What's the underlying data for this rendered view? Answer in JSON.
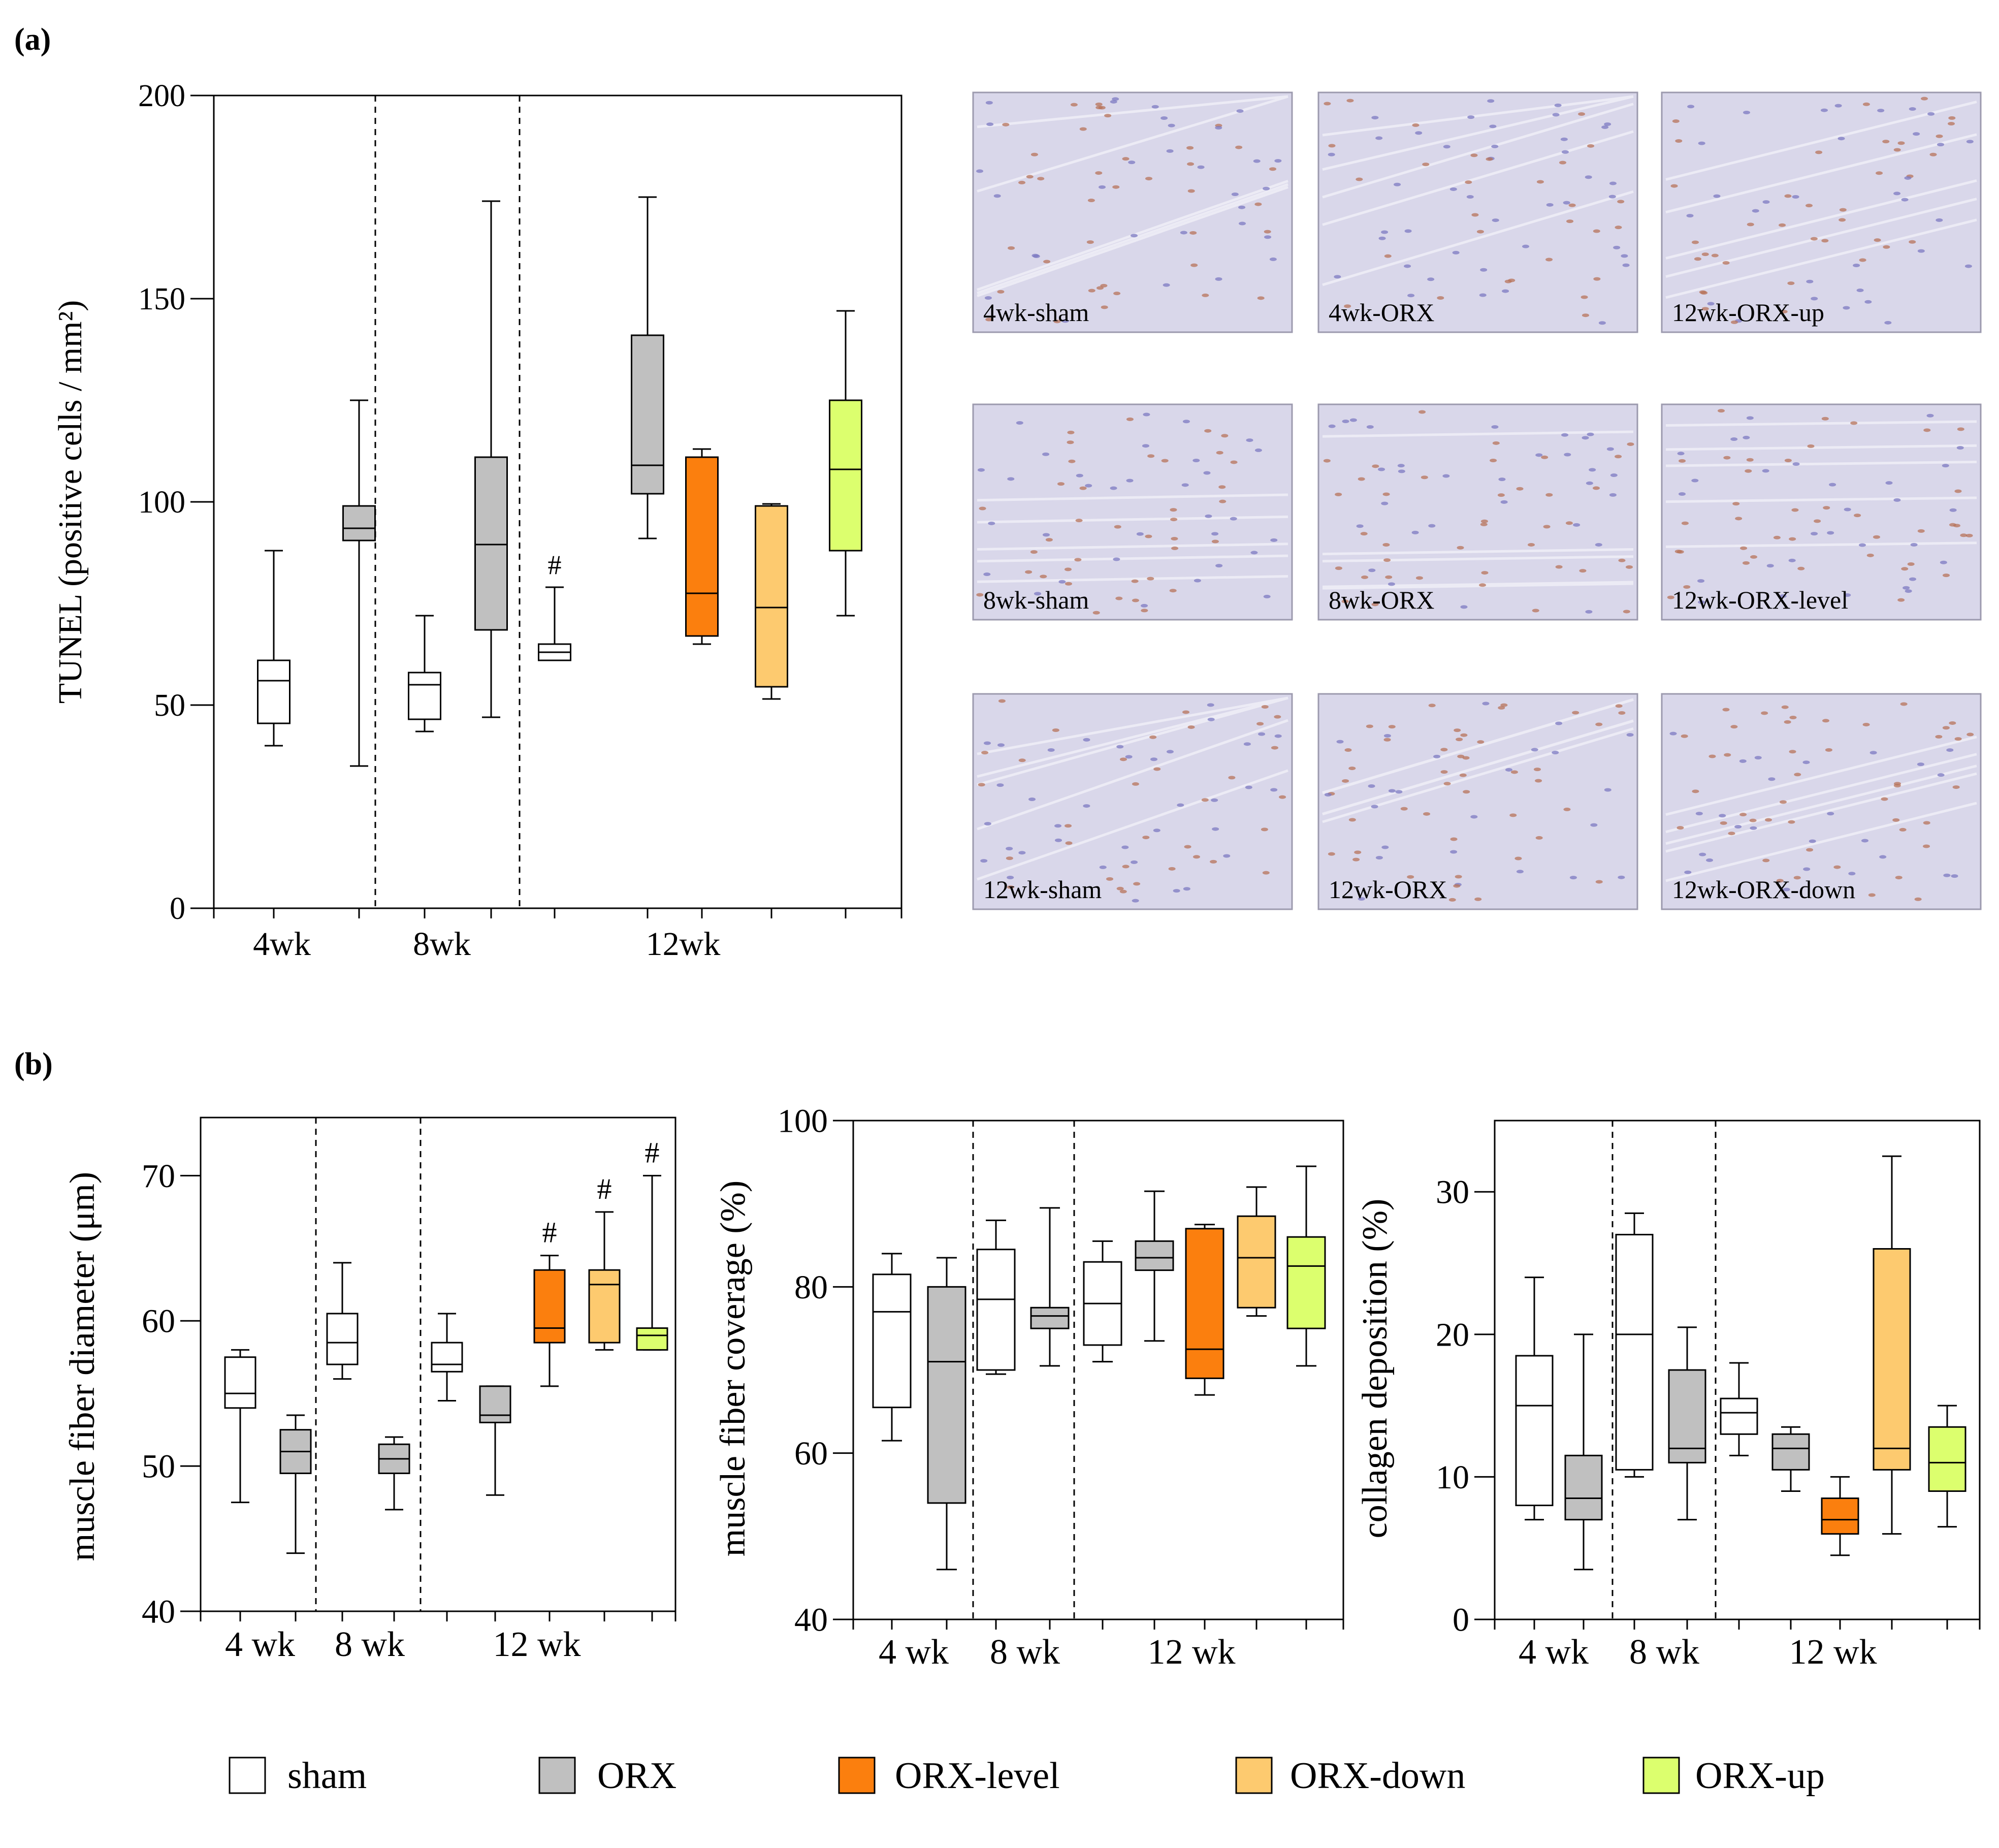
{
  "panels": {
    "a_label": "(a)",
    "b_label": "(b)"
  },
  "colors": {
    "sham": "#ffffff",
    "ORX": "#c0c0c0",
    "ORX-level": "#fb7f0e",
    "ORX-down": "#fdca6f",
    "ORX-up": "#dcff6e",
    "micrograph_bg": "#d9d7ea",
    "nuclei_blue": "#7c79c1",
    "nuclei_brown": "#b7735a"
  },
  "legend": [
    {
      "label": "sham",
      "key": "sham"
    },
    {
      "label": "ORX",
      "key": "ORX"
    },
    {
      "label": "ORX-level",
      "key": "ORX-level"
    },
    {
      "label": "ORX-down",
      "key": "ORX-down"
    },
    {
      "label": "ORX-up",
      "key": "ORX-up"
    }
  ],
  "micrographs": [
    "4wk-sham",
    "4wk-ORX",
    "12wk-ORX-up",
    "8wk-sham",
    "8wk-ORX",
    "12wk-ORX-level",
    "12wk-sham",
    "12wk-ORX",
    "12wk-ORX-down"
  ],
  "chart_data": [
    {
      "id": "tunel",
      "type": "box",
      "ylabel": "TUNEL (positive cells / mm²)",
      "ylim": [
        0,
        200
      ],
      "yticks": [
        0,
        50,
        100,
        150,
        200
      ],
      "group_labels": [
        "4wk",
        "8wk",
        "12wk"
      ],
      "boxes": [
        {
          "group": "4wk",
          "series": "sham",
          "min": 40,
          "q1": 45.5,
          "median": 56,
          "q3": 61,
          "max": 88
        },
        {
          "group": "4wk",
          "series": "ORX",
          "min": 35,
          "q1": 90.5,
          "median": 93.5,
          "q3": 99,
          "max": 125
        },
        {
          "group": "8wk",
          "series": "sham",
          "min": 43.5,
          "q1": 46.5,
          "median": 55,
          "q3": 58,
          "max": 72
        },
        {
          "group": "8wk",
          "series": "ORX",
          "min": 47,
          "q1": 68.5,
          "median": 89.5,
          "q3": 111,
          "max": 174
        },
        {
          "group": "12wk",
          "series": "sham",
          "min": 61,
          "q1": 61,
          "median": 63,
          "q3": 65,
          "max": 79,
          "marker": "#"
        },
        {
          "group": "12wk",
          "series": "ORX",
          "min": 91,
          "q1": 102,
          "median": 109,
          "q3": 141,
          "max": 175
        },
        {
          "group": "12wk",
          "series": "ORX-level",
          "min": 65,
          "q1": 67,
          "median": 77.5,
          "q3": 111,
          "max": 113
        },
        {
          "group": "12wk",
          "series": "ORX-down",
          "min": 51.5,
          "q1": 54.5,
          "median": 74,
          "q3": 99,
          "max": 99.5
        },
        {
          "group": "12wk",
          "series": "ORX-up",
          "min": 72,
          "q1": 88,
          "median": 108,
          "q3": 125,
          "max": 147
        }
      ]
    },
    {
      "id": "diameter",
      "type": "box",
      "ylabel": "muscle fiber diameter (μm)",
      "ylim": [
        40,
        74
      ],
      "yticks": [
        40,
        50,
        60,
        70
      ],
      "group_labels": [
        "4 wk",
        "8 wk",
        "12 wk"
      ],
      "boxes": [
        {
          "group": "4 wk",
          "series": "sham",
          "min": 47.5,
          "q1": 54,
          "median": 55,
          "q3": 57.5,
          "max": 58
        },
        {
          "group": "4 wk",
          "series": "ORX",
          "min": 44,
          "q1": 49.5,
          "median": 51,
          "q3": 52.5,
          "max": 53.5
        },
        {
          "group": "8 wk",
          "series": "sham",
          "min": 56,
          "q1": 57,
          "median": 58.5,
          "q3": 60.5,
          "max": 64
        },
        {
          "group": "8 wk",
          "series": "ORX",
          "min": 47,
          "q1": 49.5,
          "median": 50.5,
          "q3": 51.5,
          "max": 52
        },
        {
          "group": "12 wk",
          "series": "sham",
          "min": 54.5,
          "q1": 56.5,
          "median": 57,
          "q3": 58.5,
          "max": 60.5
        },
        {
          "group": "12 wk",
          "series": "ORX",
          "min": 48,
          "q1": 53,
          "median": 53.5,
          "q3": 55.5,
          "max": 55.5
        },
        {
          "group": "12 wk",
          "series": "ORX-level",
          "min": 55.5,
          "q1": 58.5,
          "median": 59.5,
          "q3": 63.5,
          "max": 64.5,
          "marker": "#"
        },
        {
          "group": "12 wk",
          "series": "ORX-down",
          "min": 58,
          "q1": 58.5,
          "median": 62.5,
          "q3": 63.5,
          "max": 67.5,
          "marker": "#"
        },
        {
          "group": "12 wk",
          "series": "ORX-up",
          "min": 58,
          "q1": 58,
          "median": 59,
          "q3": 59.5,
          "max": 70,
          "marker": "#"
        }
      ]
    },
    {
      "id": "coverage",
      "type": "box",
      "ylabel": "muscle fiber coverage (%)",
      "ylim": [
        40,
        100
      ],
      "yticks": [
        40,
        60,
        80,
        100
      ],
      "group_labels": [
        "4 wk",
        "8 wk",
        "12 wk"
      ],
      "boxes": [
        {
          "group": "4 wk",
          "series": "sham",
          "min": 61.5,
          "q1": 65.5,
          "median": 77,
          "q3": 81.5,
          "max": 84
        },
        {
          "group": "4 wk",
          "series": "ORX",
          "min": 46,
          "q1": 54,
          "median": 71,
          "q3": 80,
          "max": 83.5
        },
        {
          "group": "8 wk",
          "series": "sham",
          "min": 69.5,
          "q1": 70,
          "median": 78.5,
          "q3": 84.5,
          "max": 88
        },
        {
          "group": "8 wk",
          "series": "ORX",
          "min": 70.5,
          "q1": 75,
          "median": 76.5,
          "q3": 77.5,
          "max": 89.5
        },
        {
          "group": "12 wk",
          "series": "sham",
          "min": 71,
          "q1": 73,
          "median": 78,
          "q3": 83,
          "max": 85.5
        },
        {
          "group": "12 wk",
          "series": "ORX",
          "min": 73.5,
          "q1": 82,
          "median": 83.5,
          "q3": 85.5,
          "max": 91.5
        },
        {
          "group": "12 wk",
          "series": "ORX-level",
          "min": 67,
          "q1": 69,
          "median": 72.5,
          "q3": 87,
          "max": 87.5
        },
        {
          "group": "12 wk",
          "series": "ORX-down",
          "min": 76.5,
          "q1": 77.5,
          "median": 83.5,
          "q3": 88.5,
          "max": 92
        },
        {
          "group": "12 wk",
          "series": "ORX-up",
          "min": 70.5,
          "q1": 75,
          "median": 82.5,
          "q3": 86,
          "max": 94.5
        }
      ]
    },
    {
      "id": "collagen",
      "type": "box",
      "ylabel": "collagen deposition (%)",
      "ylim": [
        0,
        35
      ],
      "yticks": [
        0,
        10,
        20,
        30
      ],
      "group_labels": [
        "4 wk",
        "8 wk",
        "12 wk"
      ],
      "boxes": [
        {
          "group": "4 wk",
          "series": "sham",
          "min": 7,
          "q1": 8,
          "median": 15,
          "q3": 18.5,
          "max": 24
        },
        {
          "group": "4 wk",
          "series": "ORX",
          "min": 3.5,
          "q1": 7,
          "median": 8.5,
          "q3": 11.5,
          "max": 20
        },
        {
          "group": "8 wk",
          "series": "sham",
          "min": 10,
          "q1": 10.5,
          "median": 20,
          "q3": 27,
          "max": 28.5
        },
        {
          "group": "8 wk",
          "series": "ORX",
          "min": 7,
          "q1": 11,
          "median": 12,
          "q3": 17.5,
          "max": 20.5
        },
        {
          "group": "12 wk",
          "series": "sham",
          "min": 11.5,
          "q1": 13,
          "median": 14.5,
          "q3": 15.5,
          "max": 18
        },
        {
          "group": "12 wk",
          "series": "ORX",
          "min": 9,
          "q1": 10.5,
          "median": 12,
          "q3": 13,
          "max": 13.5
        },
        {
          "group": "12 wk",
          "series": "ORX-level",
          "min": 4.5,
          "q1": 6,
          "median": 7,
          "q3": 8.5,
          "max": 10
        },
        {
          "group": "12 wk",
          "series": "ORX-down",
          "min": 6,
          "q1": 10.5,
          "median": 12,
          "q3": 26,
          "max": 32.5
        },
        {
          "group": "12 wk",
          "series": "ORX-up",
          "min": 6.5,
          "q1": 9,
          "median": 11,
          "q3": 13.5,
          "max": 15
        }
      ]
    }
  ]
}
